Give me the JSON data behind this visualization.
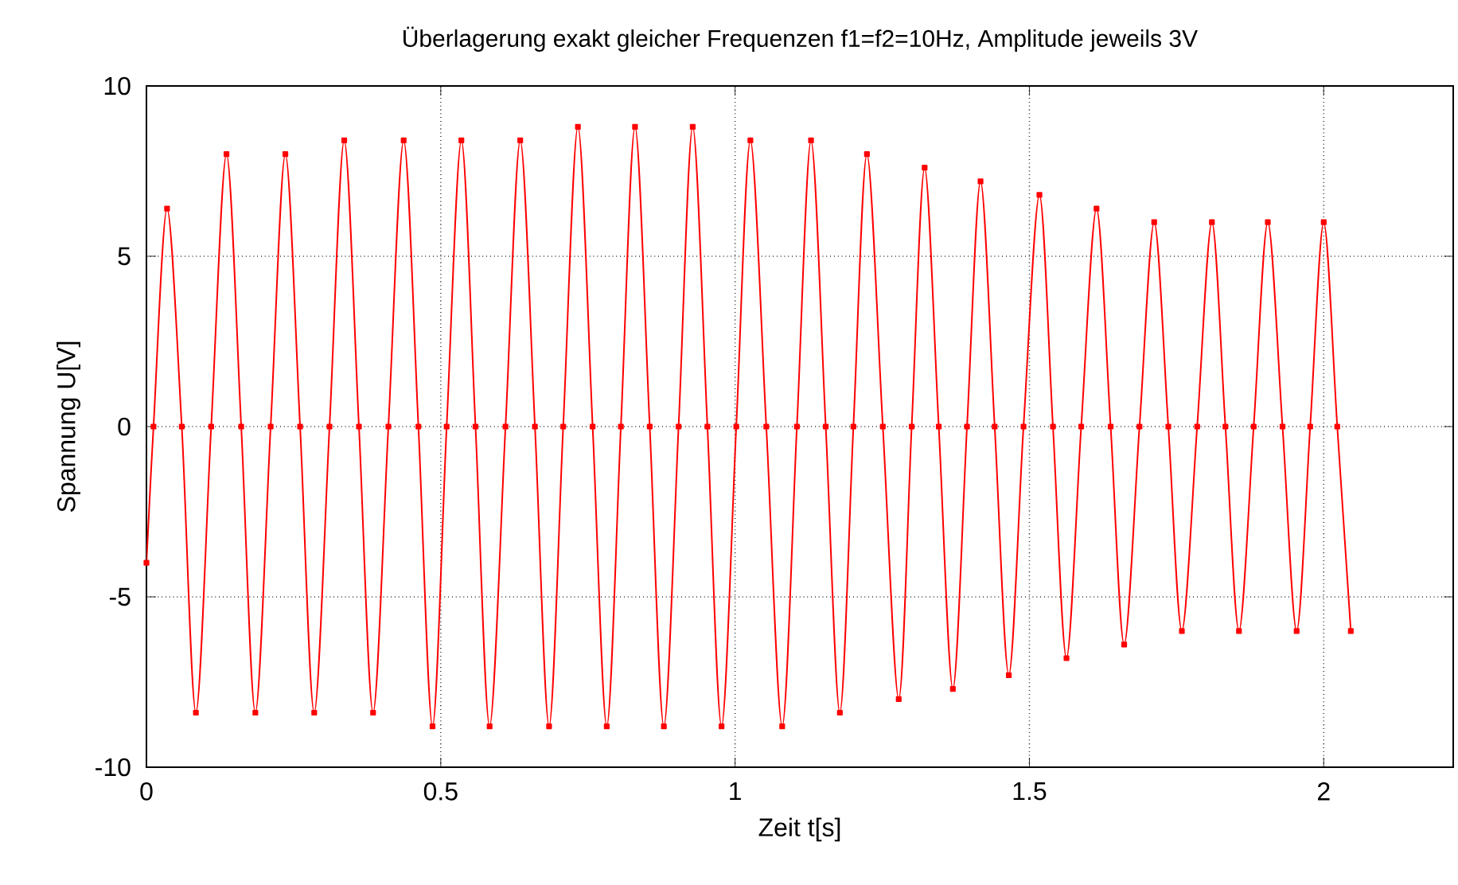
{
  "chart_data": {
    "type": "line",
    "title": "Überlagerung exakt gleicher Frequenzen f1=f2=10Hz, Amplitude jeweils 3V",
    "xlabel": "Zeit t[s]",
    "ylabel": "Spannung U[V]",
    "xlim": [
      0,
      2.22
    ],
    "ylim": [
      -10,
      10
    ],
    "xticks": [
      0,
      0.5,
      1,
      1.5,
      2
    ],
    "yticks": [
      -10,
      -5,
      0,
      5,
      10
    ],
    "grid": true,
    "marker": "square",
    "line_style": "solid",
    "series": [
      {
        "color": "#ff0000",
        "x": [
          0,
          0.012,
          0.035,
          0.06,
          0.084,
          0.11,
          0.136,
          0.161,
          0.185,
          0.211,
          0.236,
          0.261,
          0.285,
          0.311,
          0.336,
          0.361,
          0.385,
          0.411,
          0.437,
          0.462,
          0.486,
          0.51,
          0.535,
          0.559,
          0.583,
          0.61,
          0.635,
          0.66,
          0.684,
          0.708,
          0.733,
          0.758,
          0.782,
          0.806,
          0.83,
          0.855,
          0.879,
          0.904,
          0.928,
          0.953,
          0.977,
          1.002,
          1.026,
          1.053,
          1.08,
          1.105,
          1.129,
          1.154,
          1.178,
          1.201,
          1.224,
          1.251,
          1.278,
          1.3,
          1.322,
          1.346,
          1.37,
          1.394,
          1.417,
          1.441,
          1.465,
          1.49,
          1.517,
          1.54,
          1.563,
          1.588,
          1.614,
          1.638,
          1.661,
          1.687,
          1.712,
          1.736,
          1.759,
          1.785,
          1.81,
          1.833,
          1.856,
          1.881,
          1.905,
          1.93,
          1.954,
          1.977,
          2.0,
          2.023,
          2.046
        ],
        "values": [
          -4.0,
          0,
          6.4,
          0,
          -8.4,
          0,
          8.0,
          0,
          -8.4,
          0,
          8.0,
          0,
          -8.4,
          0,
          8.4,
          0,
          -8.4,
          0,
          8.4,
          0,
          -8.8,
          0,
          8.4,
          0,
          -8.8,
          0,
          8.4,
          0,
          -8.8,
          0,
          8.8,
          0,
          -8.8,
          0,
          8.8,
          0,
          -8.8,
          0,
          8.8,
          0,
          -8.8,
          0,
          8.4,
          0,
          -8.8,
          0,
          8.4,
          0,
          -8.4,
          0,
          8.0,
          0,
          -8.0,
          0,
          7.6,
          0,
          -7.7,
          0,
          7.2,
          0,
          -7.3,
          0,
          6.8,
          0,
          -6.8,
          0,
          6.4,
          0,
          -6.4,
          0,
          6.0,
          0,
          -6.0,
          0,
          6.0,
          0,
          -6.0,
          0,
          6.0,
          0,
          -6.0,
          0,
          6.0,
          0,
          -6.0
        ]
      }
    ]
  }
}
